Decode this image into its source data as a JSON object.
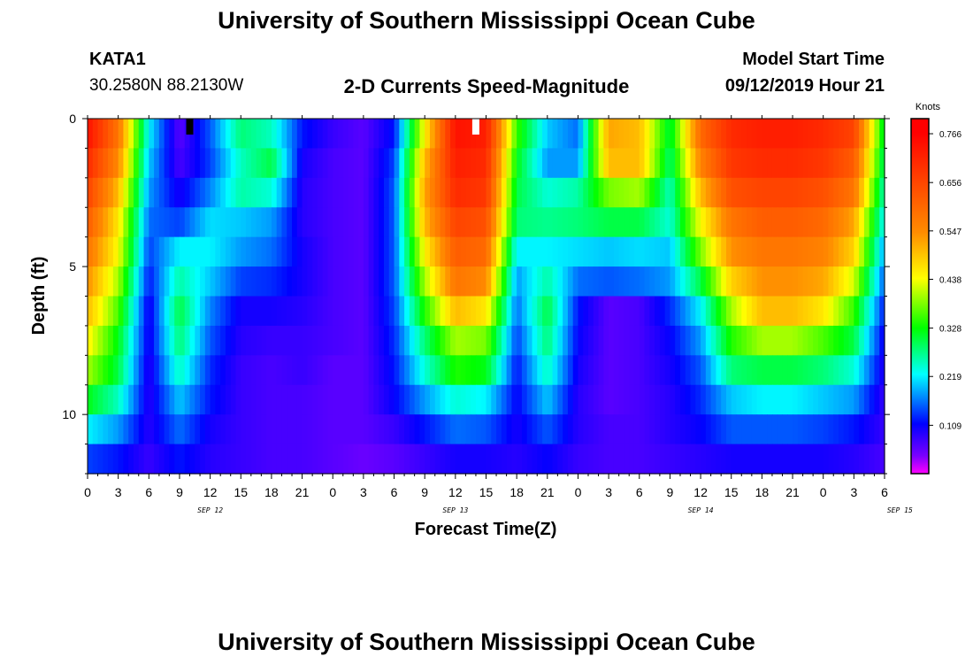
{
  "header": {
    "title": "University of Southern Mississippi Ocean Cube",
    "station_id": "KATA1",
    "station_coords": "30.2580N 88.2130W",
    "subtitle": "2-D Currents Speed-Magnitude",
    "model_label": "Model Start Time",
    "model_time": "09/12/2019 Hour 21"
  },
  "footer": {
    "title": "University of Southern Mississippi Ocean Cube"
  },
  "chart_data": {
    "type": "heatmap",
    "xlabel": "Forecast Time(Z)",
    "ylabel": "Depth (ft)",
    "colorbar_label": "Knots",
    "colorbar_ticks": [
      "0.766",
      "0.656",
      "0.547",
      "0.438",
      "0.328",
      "0.219",
      "0.109"
    ],
    "colorbar_range": [
      0,
      0.8
    ],
    "x_tick_labels": [
      "0",
      "3",
      "6",
      "9",
      "12",
      "15",
      "18",
      "21",
      "0",
      "3",
      "6",
      "9",
      "12",
      "15",
      "18",
      "21",
      "0",
      "3",
      "6",
      "9",
      "12",
      "15",
      "18",
      "21",
      "0",
      "3",
      "6"
    ],
    "date_labels": [
      {
        "label": "SEP 12",
        "hour": 12
      },
      {
        "label": "SEP 13",
        "hour": 36
      },
      {
        "label": "SEP 14",
        "hour": 60
      },
      {
        "label": "SEP 15",
        "hour": 79.5
      }
    ],
    "x_range_hours": [
      0,
      78
    ],
    "y_ticks": [
      0,
      5,
      10
    ],
    "y_range_ft": [
      0,
      12
    ],
    "depths_ft": [
      0.5,
      1.5,
      2.5,
      3.5,
      4.5,
      5.5,
      6.5,
      7.5,
      8.5,
      9.5,
      10.5,
      11.5
    ],
    "time_hours": [
      0,
      3,
      6,
      9,
      12,
      15,
      18,
      21,
      24,
      27,
      30,
      33,
      36,
      39,
      42,
      45,
      48,
      51,
      54,
      57,
      60,
      63,
      66,
      69,
      72,
      75,
      78
    ],
    "values": [
      [
        0.74,
        0.58,
        0.22,
        0.06,
        0.15,
        0.28,
        0.25,
        0.12,
        0.08,
        0.06,
        0.12,
        0.45,
        0.74,
        0.72,
        0.35,
        0.2,
        0.16,
        0.52,
        0.5,
        0.3,
        0.6,
        0.7,
        0.72,
        0.72,
        0.7,
        0.66,
        0.3
      ],
      [
        0.7,
        0.55,
        0.2,
        0.07,
        0.14,
        0.25,
        0.3,
        0.1,
        0.07,
        0.06,
        0.14,
        0.5,
        0.72,
        0.7,
        0.32,
        0.18,
        0.18,
        0.5,
        0.5,
        0.28,
        0.56,
        0.68,
        0.7,
        0.7,
        0.68,
        0.62,
        0.28
      ],
      [
        0.66,
        0.5,
        0.18,
        0.1,
        0.17,
        0.26,
        0.24,
        0.09,
        0.07,
        0.06,
        0.15,
        0.52,
        0.7,
        0.68,
        0.3,
        0.24,
        0.26,
        0.38,
        0.4,
        0.25,
        0.5,
        0.64,
        0.66,
        0.66,
        0.64,
        0.58,
        0.25
      ],
      [
        0.62,
        0.46,
        0.16,
        0.14,
        0.21,
        0.2,
        0.18,
        0.09,
        0.07,
        0.06,
        0.15,
        0.5,
        0.66,
        0.64,
        0.28,
        0.27,
        0.28,
        0.3,
        0.3,
        0.24,
        0.44,
        0.58,
        0.62,
        0.62,
        0.6,
        0.52,
        0.22
      ],
      [
        0.58,
        0.44,
        0.14,
        0.22,
        0.22,
        0.18,
        0.16,
        0.1,
        0.07,
        0.06,
        0.15,
        0.45,
        0.62,
        0.6,
        0.22,
        0.22,
        0.21,
        0.2,
        0.21,
        0.2,
        0.38,
        0.54,
        0.58,
        0.58,
        0.56,
        0.48,
        0.18
      ],
      [
        0.54,
        0.4,
        0.12,
        0.26,
        0.2,
        0.14,
        0.13,
        0.1,
        0.07,
        0.06,
        0.15,
        0.4,
        0.58,
        0.55,
        0.18,
        0.26,
        0.16,
        0.15,
        0.16,
        0.18,
        0.3,
        0.48,
        0.54,
        0.54,
        0.52,
        0.42,
        0.15
      ],
      [
        0.5,
        0.36,
        0.1,
        0.3,
        0.17,
        0.1,
        0.1,
        0.09,
        0.07,
        0.06,
        0.14,
        0.34,
        0.5,
        0.46,
        0.16,
        0.3,
        0.12,
        0.06,
        0.07,
        0.13,
        0.22,
        0.4,
        0.5,
        0.5,
        0.46,
        0.35,
        0.12
      ],
      [
        0.45,
        0.32,
        0.1,
        0.28,
        0.15,
        0.09,
        0.08,
        0.08,
        0.07,
        0.06,
        0.13,
        0.28,
        0.4,
        0.38,
        0.14,
        0.28,
        0.11,
        0.06,
        0.07,
        0.11,
        0.18,
        0.34,
        0.4,
        0.4,
        0.36,
        0.3,
        0.1
      ],
      [
        0.4,
        0.3,
        0.09,
        0.25,
        0.13,
        0.08,
        0.07,
        0.08,
        0.06,
        0.06,
        0.12,
        0.24,
        0.34,
        0.32,
        0.12,
        0.25,
        0.1,
        0.06,
        0.07,
        0.1,
        0.15,
        0.28,
        0.3,
        0.3,
        0.28,
        0.24,
        0.09
      ],
      [
        0.32,
        0.25,
        0.09,
        0.2,
        0.12,
        0.08,
        0.07,
        0.07,
        0.06,
        0.06,
        0.11,
        0.18,
        0.24,
        0.22,
        0.11,
        0.2,
        0.09,
        0.06,
        0.07,
        0.09,
        0.13,
        0.2,
        0.22,
        0.22,
        0.2,
        0.18,
        0.08
      ],
      [
        0.22,
        0.18,
        0.09,
        0.16,
        0.1,
        0.08,
        0.07,
        0.07,
        0.06,
        0.06,
        0.08,
        0.12,
        0.16,
        0.15,
        0.1,
        0.15,
        0.09,
        0.07,
        0.07,
        0.09,
        0.11,
        0.15,
        0.15,
        0.15,
        0.14,
        0.12,
        0.08
      ],
      [
        0.14,
        0.12,
        0.08,
        0.12,
        0.09,
        0.08,
        0.07,
        0.07,
        0.06,
        0.05,
        0.06,
        0.08,
        0.1,
        0.1,
        0.09,
        0.11,
        0.08,
        0.07,
        0.07,
        0.08,
        0.09,
        0.1,
        0.1,
        0.1,
        0.1,
        0.09,
        0.07
      ]
    ],
    "markers": [
      {
        "hour": 10,
        "color": "#000000"
      },
      {
        "hour": 38,
        "color": "#ffffff"
      }
    ]
  }
}
